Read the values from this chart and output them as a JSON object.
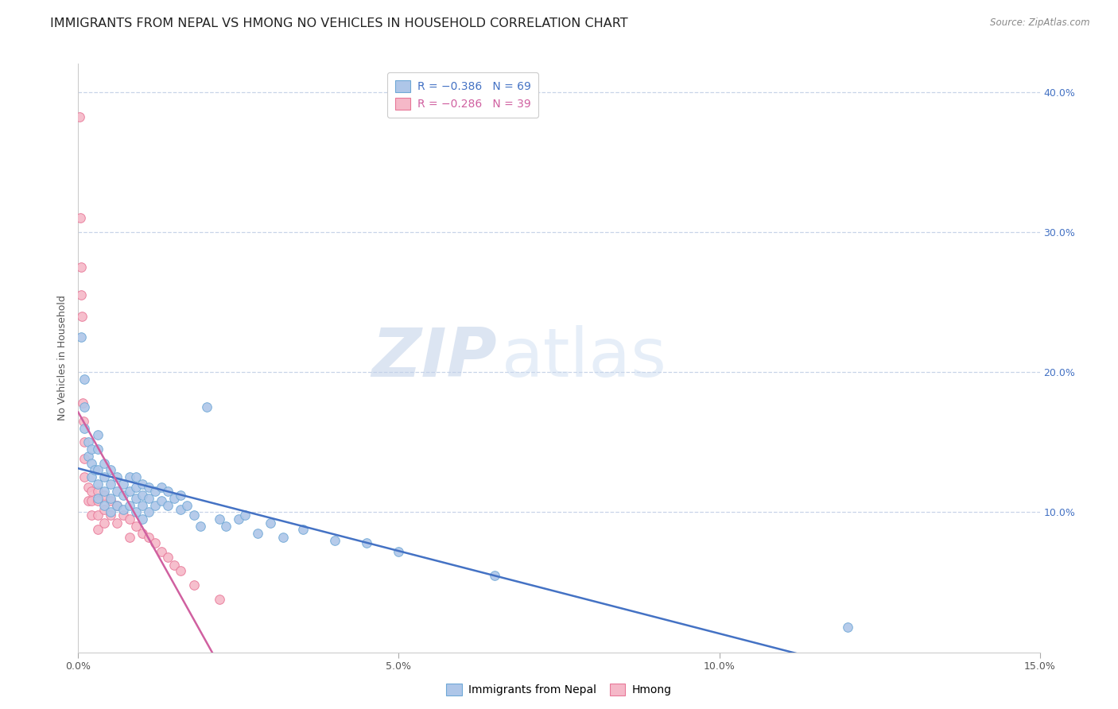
{
  "title": "IMMIGRANTS FROM NEPAL VS HMONG NO VEHICLES IN HOUSEHOLD CORRELATION CHART",
  "source": "Source: ZipAtlas.com",
  "ylabel": "No Vehicles in Household",
  "xlim": [
    0,
    0.15
  ],
  "ylim": [
    0,
    0.42
  ],
  "x_ticks": [
    0.0,
    0.05,
    0.1,
    0.15
  ],
  "x_tick_labels": [
    "0.0%",
    "5.0%",
    "10.0%",
    "15.0%"
  ],
  "y_ticks": [
    0.1,
    0.2,
    0.3,
    0.4
  ],
  "y_tick_labels_right": [
    "10.0%",
    "20.0%",
    "30.0%",
    "40.0%"
  ],
  "nepal_color": "#aec6e8",
  "hmong_color": "#f5b8c8",
  "nepal_edge_color": "#6fa8d6",
  "hmong_edge_color": "#e87898",
  "trend_nepal_color": "#4472c4",
  "trend_hmong_color": "#d060a0",
  "legend_R_nepal": "R = –0.386",
  "legend_N_nepal": "N = 69",
  "legend_R_hmong": "R = –0.286",
  "legend_N_hmong": "N = 39",
  "watermark_zip": "ZIP",
  "watermark_atlas": "atlas",
  "background_color": "#ffffff",
  "grid_color": "#c8d4e8",
  "title_fontsize": 11.5,
  "axis_label_fontsize": 9,
  "tick_fontsize": 9,
  "legend_fontsize": 10,
  "marker_size": 70,
  "nepal_x": [
    0.0005,
    0.001,
    0.001,
    0.001,
    0.0015,
    0.0015,
    0.002,
    0.002,
    0.002,
    0.0025,
    0.003,
    0.003,
    0.003,
    0.003,
    0.003,
    0.004,
    0.004,
    0.004,
    0.004,
    0.005,
    0.005,
    0.005,
    0.005,
    0.006,
    0.006,
    0.006,
    0.007,
    0.007,
    0.007,
    0.008,
    0.008,
    0.008,
    0.009,
    0.009,
    0.009,
    0.009,
    0.01,
    0.01,
    0.01,
    0.01,
    0.011,
    0.011,
    0.011,
    0.012,
    0.012,
    0.013,
    0.013,
    0.014,
    0.014,
    0.015,
    0.016,
    0.016,
    0.017,
    0.018,
    0.019,
    0.02,
    0.022,
    0.023,
    0.025,
    0.026,
    0.028,
    0.03,
    0.032,
    0.035,
    0.04,
    0.045,
    0.05,
    0.065,
    0.12
  ],
  "nepal_y": [
    0.225,
    0.195,
    0.175,
    0.16,
    0.15,
    0.14,
    0.145,
    0.135,
    0.125,
    0.13,
    0.155,
    0.145,
    0.13,
    0.12,
    0.11,
    0.135,
    0.125,
    0.115,
    0.105,
    0.13,
    0.12,
    0.11,
    0.1,
    0.125,
    0.115,
    0.105,
    0.12,
    0.112,
    0.102,
    0.125,
    0.115,
    0.105,
    0.125,
    0.118,
    0.11,
    0.1,
    0.12,
    0.112,
    0.105,
    0.095,
    0.118,
    0.11,
    0.1,
    0.115,
    0.105,
    0.118,
    0.108,
    0.115,
    0.105,
    0.11,
    0.112,
    0.102,
    0.105,
    0.098,
    0.09,
    0.175,
    0.095,
    0.09,
    0.095,
    0.098,
    0.085,
    0.092,
    0.082,
    0.088,
    0.08,
    0.078,
    0.072,
    0.055,
    0.018
  ],
  "hmong_x": [
    0.0002,
    0.0003,
    0.0004,
    0.0005,
    0.0006,
    0.0007,
    0.0008,
    0.001,
    0.001,
    0.001,
    0.0015,
    0.0015,
    0.002,
    0.002,
    0.002,
    0.003,
    0.003,
    0.003,
    0.003,
    0.004,
    0.004,
    0.004,
    0.005,
    0.005,
    0.006,
    0.006,
    0.007,
    0.008,
    0.008,
    0.009,
    0.01,
    0.011,
    0.012,
    0.013,
    0.014,
    0.015,
    0.016,
    0.018,
    0.022
  ],
  "hmong_y": [
    0.382,
    0.31,
    0.275,
    0.255,
    0.24,
    0.178,
    0.165,
    0.15,
    0.138,
    0.125,
    0.118,
    0.108,
    0.115,
    0.108,
    0.098,
    0.115,
    0.108,
    0.098,
    0.088,
    0.112,
    0.102,
    0.092,
    0.108,
    0.098,
    0.105,
    0.092,
    0.098,
    0.095,
    0.082,
    0.09,
    0.085,
    0.082,
    0.078,
    0.072,
    0.068,
    0.062,
    0.058,
    0.048,
    0.038
  ]
}
